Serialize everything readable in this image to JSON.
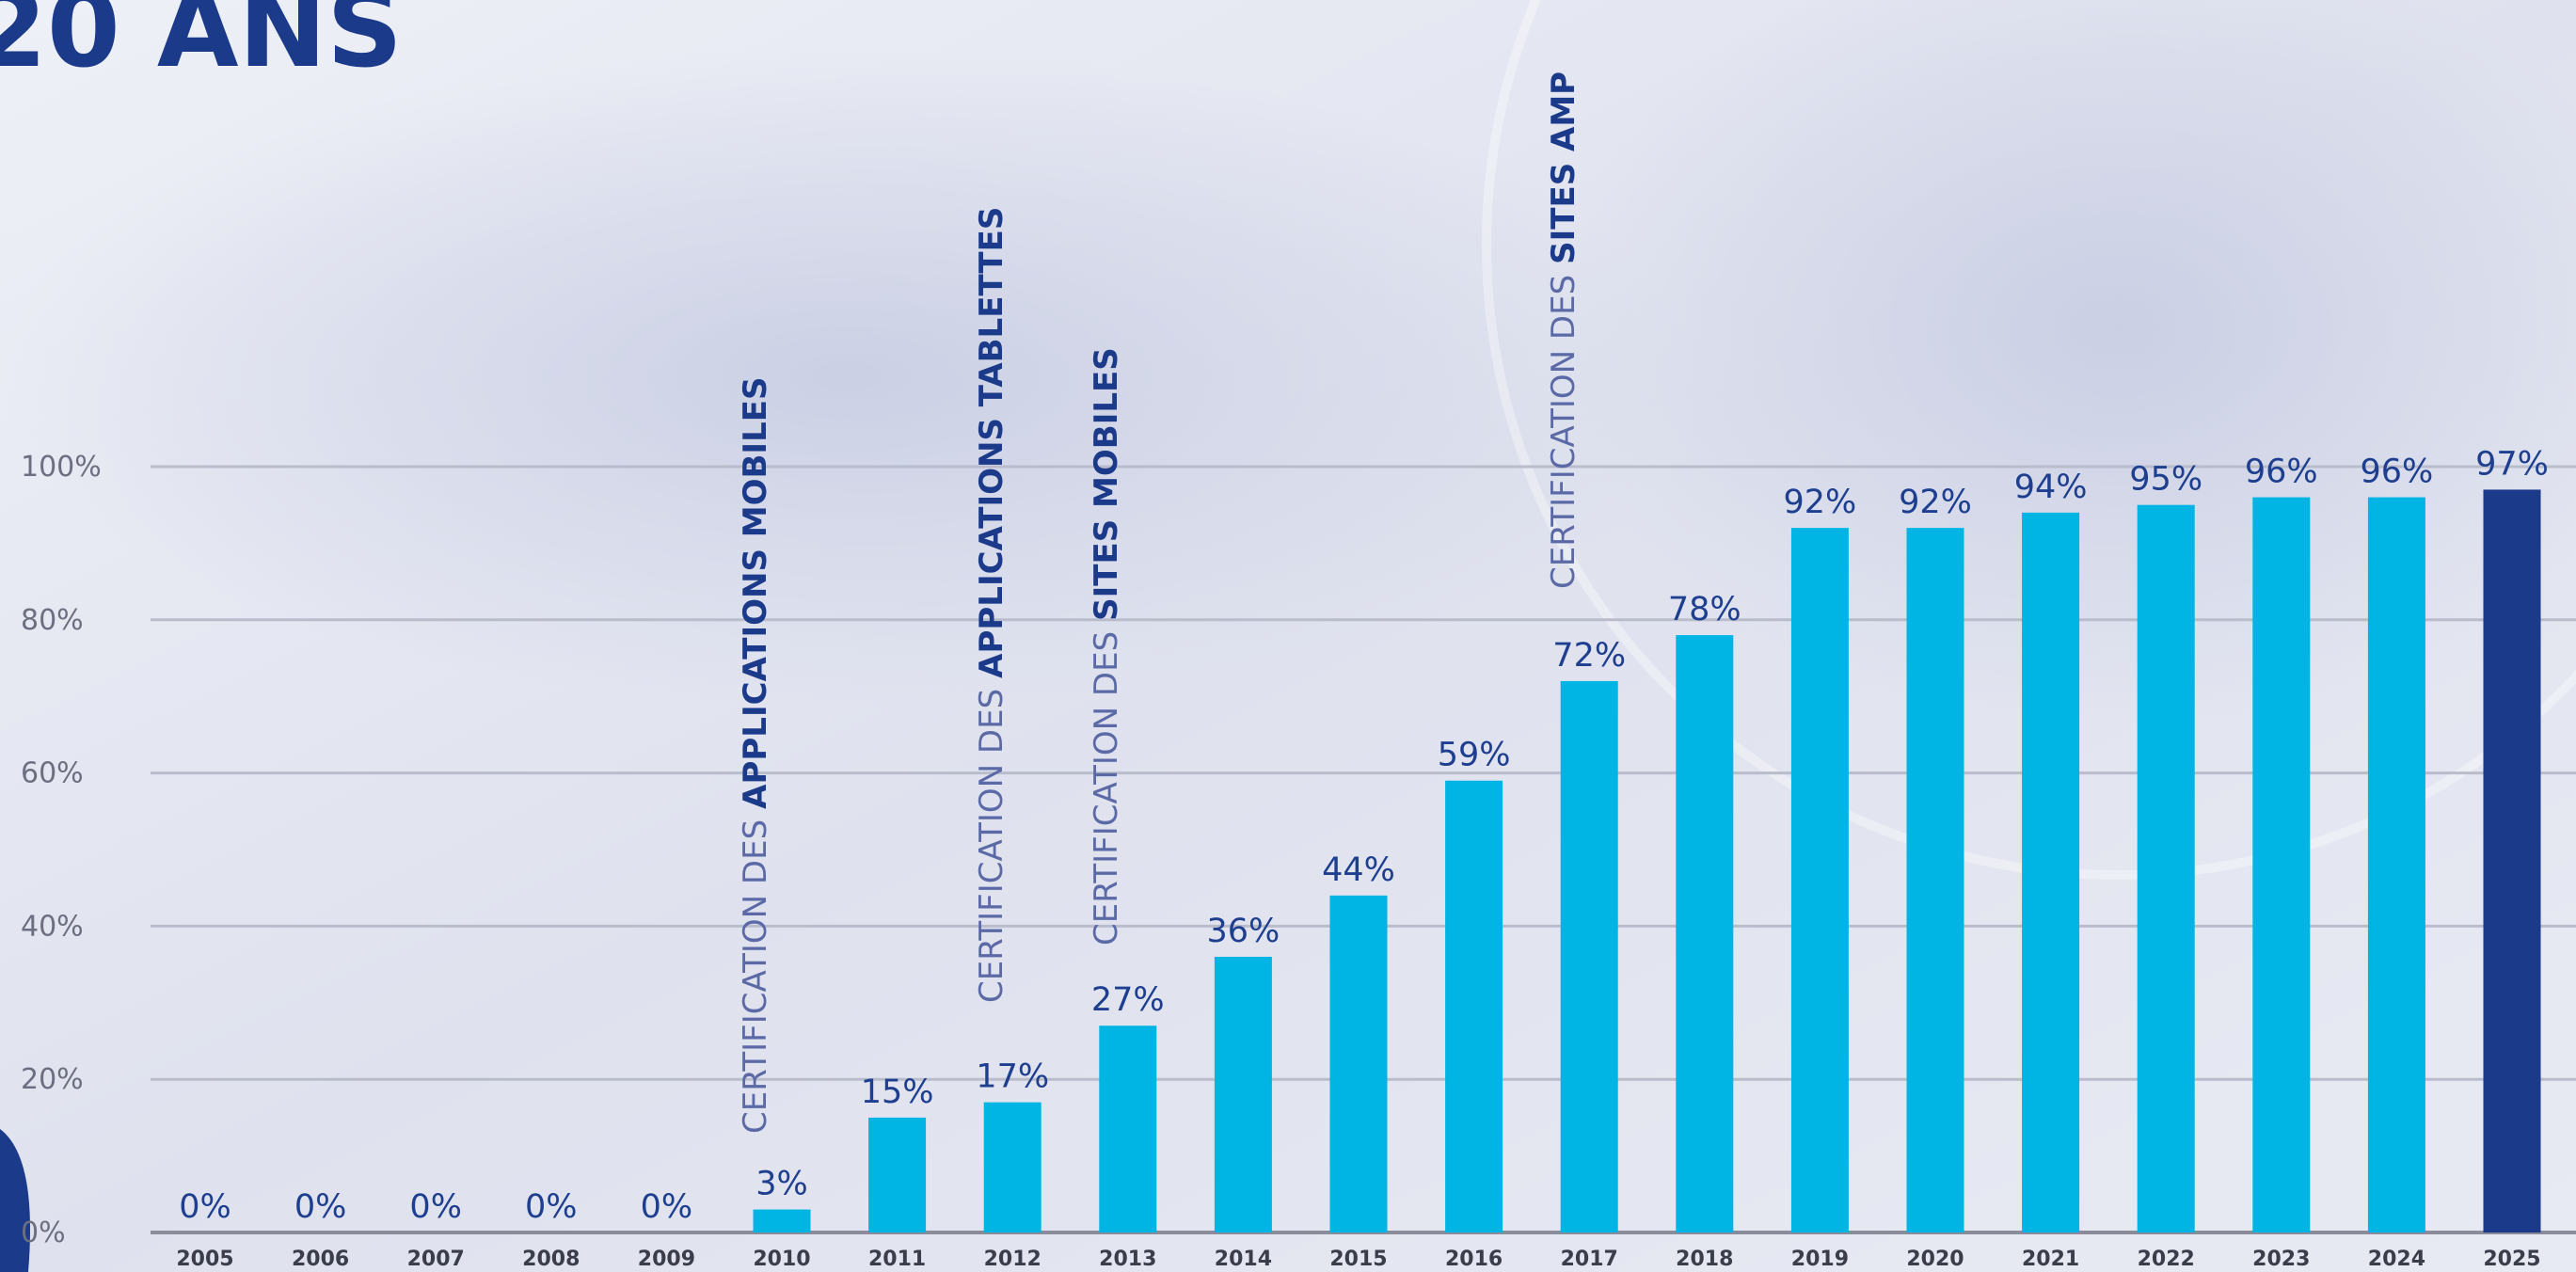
{
  "chart_data": {
    "type": "bar",
    "title": "20 ANS",
    "categories": [
      "2005",
      "2006",
      "2007",
      "2008",
      "2009",
      "2010",
      "2011",
      "2012",
      "2013",
      "2014",
      "2015",
      "2016",
      "2017",
      "2018",
      "2019",
      "2020",
      "2021",
      "2022",
      "2023",
      "2024",
      "2025"
    ],
    "values": [
      0,
      0,
      0,
      0,
      0,
      3,
      15,
      17,
      27,
      36,
      44,
      59,
      72,
      78,
      92,
      92,
      94,
      95,
      96,
      96,
      97
    ],
    "value_labels": [
      "0%",
      "0%",
      "0%",
      "0%",
      "0%",
      "3%",
      "15%",
      "17%",
      "27%",
      "36%",
      "44%",
      "59%",
      "72%",
      "78%",
      "92%",
      "92%",
      "94%",
      "95%",
      "96%",
      "96%",
      "97%"
    ],
    "colors": [
      "#00b4e4",
      "#00b4e4",
      "#00b4e4",
      "#00b4e4",
      "#00b4e4",
      "#00b4e4",
      "#00b4e4",
      "#00b4e4",
      "#00b4e4",
      "#00b4e4",
      "#00b4e4",
      "#00b4e4",
      "#00b4e4",
      "#00b4e4",
      "#00b4e4",
      "#00b4e4",
      "#00b4e4",
      "#00b4e4",
      "#00b4e4",
      "#00b4e4",
      "#1b3a8a"
    ],
    "ylim": [
      0,
      100
    ],
    "yticks": [
      {
        "value": 0,
        "label": "0%"
      },
      {
        "value": 20,
        "label": "20%"
      },
      {
        "value": 40,
        "label": "40%"
      },
      {
        "value": 60,
        "label": "60%"
      },
      {
        "value": 80,
        "label": "80%"
      },
      {
        "value": 100,
        "label": "100%"
      }
    ],
    "grid": true,
    "annotations": [
      {
        "text": "CERTIFICATION DES",
        "emphasis": "APPLICATIONS MOBILES"
      },
      {
        "text": "CERTIFICATION DES",
        "emphasis": "APPLICATIONS TABLETTES"
      },
      {
        "text": "CERTIFICATION DES",
        "emphasis": "SITES MOBILES"
      },
      {
        "text": "CERTIFICATION DES",
        "emphasis": "SITES AMP"
      }
    ]
  }
}
